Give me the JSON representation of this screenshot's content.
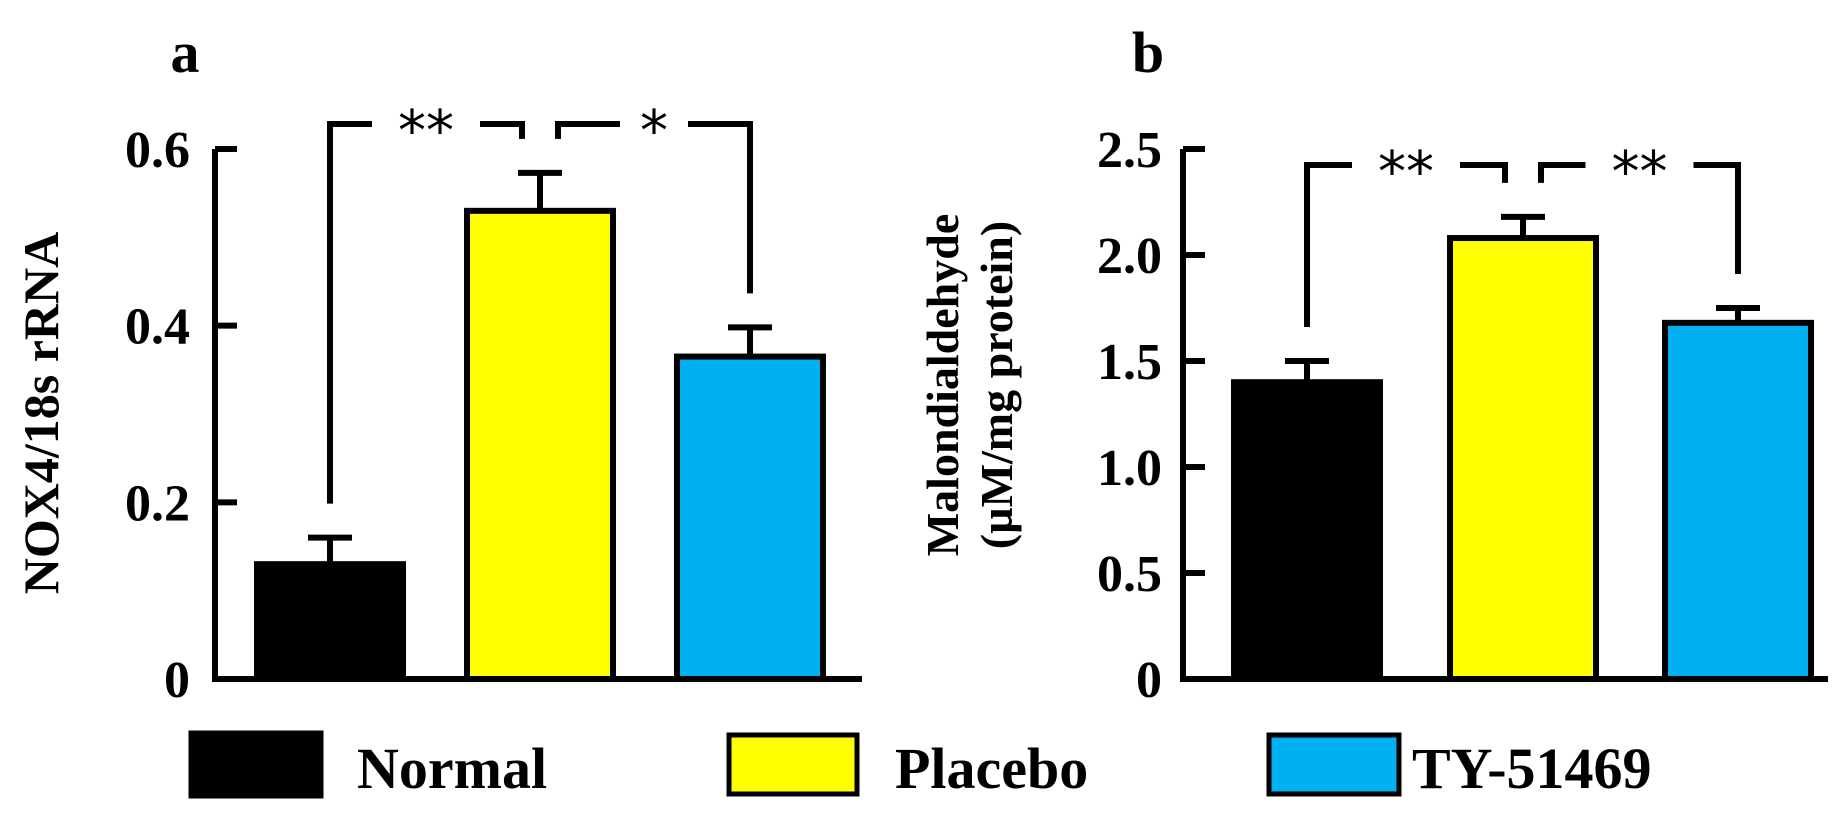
{
  "chart_data": [
    {
      "panel": "a",
      "type": "bar",
      "ylabel": "NOX4/18s rRNA",
      "ylim": [
        0,
        0.6
      ],
      "yticks": [
        0,
        0.2,
        0.4,
        0.6
      ],
      "ytick_labels": [
        "0",
        "0.2",
        "0.4",
        "0.6"
      ],
      "categories": [
        "Normal",
        "Placebo",
        "TY-51469"
      ],
      "values": [
        0.13,
        0.53,
        0.365
      ],
      "errors": [
        0.03,
        0.043,
        0.033
      ],
      "colors": [
        "#000000",
        "#ffff00",
        "#00b0f0"
      ],
      "significance": [
        {
          "from": 0,
          "to": 1,
          "label": "**"
        },
        {
          "from": 1,
          "to": 2,
          "label": "*"
        }
      ]
    },
    {
      "panel": "b",
      "type": "bar",
      "ylabel_lines": [
        "Malondialdehyde",
        "(µM/mg protein)"
      ],
      "ylim": [
        0,
        2.5
      ],
      "yticks": [
        0,
        0.5,
        1.0,
        1.5,
        2.0,
        2.5
      ],
      "ytick_labels": [
        "0",
        "0.5",
        "1.0",
        "1.5",
        "2.0",
        "2.5"
      ],
      "categories": [
        "Normal",
        "Placebo",
        "TY-51469"
      ],
      "values": [
        1.4,
        2.08,
        1.68
      ],
      "errors": [
        0.1,
        0.1,
        0.07
      ],
      "colors": [
        "#000000",
        "#ffff00",
        "#00b0f0"
      ],
      "significance": [
        {
          "from": 0,
          "to": 1,
          "label": "**"
        },
        {
          "from": 1,
          "to": 2,
          "label": "**"
        }
      ]
    }
  ],
  "legend": [
    {
      "label": "Normal",
      "color": "#000000"
    },
    {
      "label": "Placebo",
      "color": "#ffff00"
    },
    {
      "label": "TY-51469",
      "color": "#00b0f0"
    }
  ]
}
